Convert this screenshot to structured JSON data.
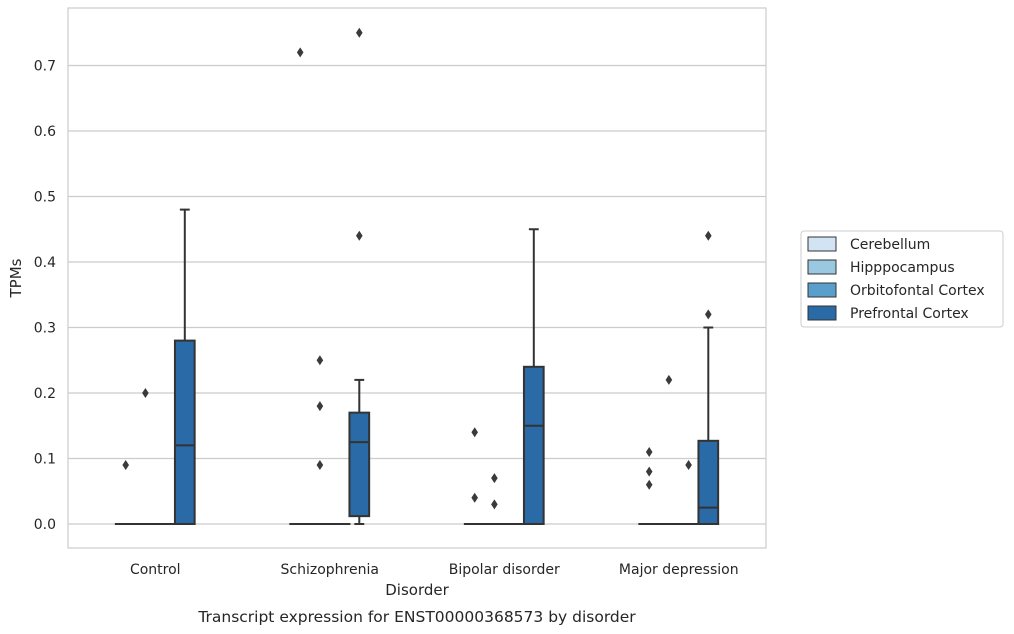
{
  "caption": "Transcript expression for ENST00000368573 by disorder",
  "chart_data": {
    "type": "box",
    "xlabel": "Disorder",
    "ylabel": "TPMs",
    "ylim": [
      -0.037,
      0.79
    ],
    "yticks": [
      "0.0",
      "0.1",
      "0.2",
      "0.3",
      "0.4",
      "0.5",
      "0.6",
      "0.7"
    ],
    "categories": [
      "Control",
      "Schizophrenia",
      "Bipolar disorder",
      "Major depression"
    ],
    "grid": "horizontal",
    "legend_position": "right",
    "series": [
      {
        "name": "Cerebellum",
        "color": "#d2e3f3",
        "boxes": [
          {
            "q1": 0,
            "median": 0,
            "q3": 0,
            "whisker_low": 0,
            "whisker_high": 0,
            "outliers": [
              0.09
            ]
          },
          {
            "q1": 0,
            "median": 0,
            "q3": 0,
            "whisker_low": 0,
            "whisker_high": 0,
            "outliers": [
              0.72
            ]
          },
          {
            "q1": 0,
            "median": 0,
            "q3": 0,
            "whisker_low": 0,
            "whisker_high": 0,
            "outliers": [
              0.04,
              0.14
            ]
          },
          {
            "q1": 0,
            "median": 0,
            "q3": 0,
            "whisker_low": 0,
            "whisker_high": 0,
            "outliers": [
              0.06,
              0.08,
              0.11
            ]
          }
        ]
      },
      {
        "name": "Hipppocampus",
        "color": "#9ac8e0",
        "boxes": [
          {
            "q1": 0,
            "median": 0,
            "q3": 0,
            "whisker_low": 0,
            "whisker_high": 0,
            "outliers": [
              0.2
            ]
          },
          {
            "q1": 0,
            "median": 0,
            "q3": 0,
            "whisker_low": 0,
            "whisker_high": 0,
            "outliers": [
              0.09,
              0.18,
              0.25
            ]
          },
          {
            "q1": 0,
            "median": 0,
            "q3": 0,
            "whisker_low": 0,
            "whisker_high": 0,
            "outliers": [
              0.03,
              0.07
            ]
          },
          {
            "q1": 0,
            "median": 0,
            "q3": 0,
            "whisker_low": 0,
            "whisker_high": 0,
            "outliers": [
              0.22
            ]
          }
        ]
      },
      {
        "name": "Orbitofontal Cortex",
        "color": "#5a9fcc",
        "boxes": [
          {
            "q1": 0,
            "median": 0,
            "q3": 0,
            "whisker_low": 0,
            "whisker_high": 0,
            "outliers": []
          },
          {
            "q1": 0,
            "median": 0,
            "q3": 0,
            "whisker_low": 0,
            "whisker_high": 0,
            "outliers": []
          },
          {
            "q1": 0,
            "median": 0,
            "q3": 0,
            "whisker_low": 0,
            "whisker_high": 0,
            "outliers": []
          },
          {
            "q1": 0,
            "median": 0,
            "q3": 0,
            "whisker_low": 0,
            "whisker_high": 0,
            "outliers": [
              0.09
            ]
          }
        ]
      },
      {
        "name": "Prefrontal Cortex",
        "color": "#2a6aa7",
        "boxes": [
          {
            "q1": 0,
            "median": 0.12,
            "q3": 0.28,
            "whisker_low": 0,
            "whisker_high": 0.48,
            "outliers": []
          },
          {
            "q1": 0.012,
            "median": 0.125,
            "q3": 0.17,
            "whisker_low": 0,
            "whisker_high": 0.22,
            "outliers": [
              0.44,
              0.75
            ]
          },
          {
            "q1": 0,
            "median": 0.15,
            "q3": 0.24,
            "whisker_low": 0,
            "whisker_high": 0.45,
            "outliers": []
          },
          {
            "q1": 0,
            "median": 0.025,
            "q3": 0.127,
            "whisker_low": 0,
            "whisker_high": 0.3,
            "outliers": [
              0.32,
              0.44
            ]
          }
        ]
      }
    ]
  }
}
